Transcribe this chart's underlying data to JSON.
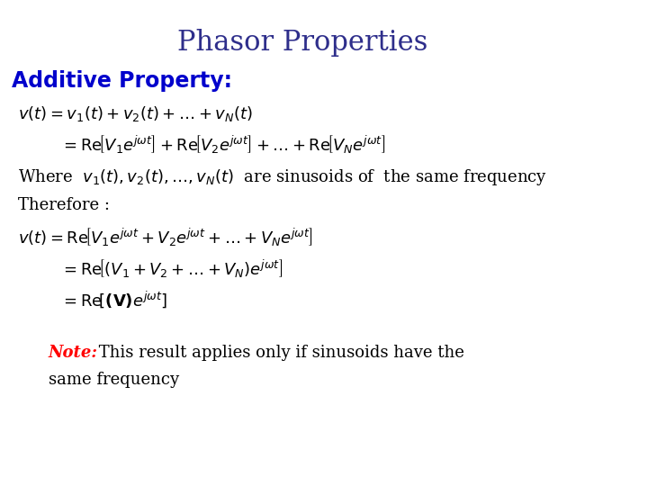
{
  "title": "Phasor Properties",
  "title_color": "#2E2E8B",
  "title_fontsize": 22,
  "subtitle": "Additive Property:",
  "subtitle_color": "#0000CC",
  "subtitle_fontsize": 17,
  "bg_color": "#FFFFFF",
  "note_label": "Note:",
  "note_label_color": "#FF0000",
  "note_text": " This result applies only if sinusoids have the",
  "note_text2": "same frequency",
  "note_fontsize": 13,
  "eq_color": "#000000",
  "eq_fontsize": 13
}
